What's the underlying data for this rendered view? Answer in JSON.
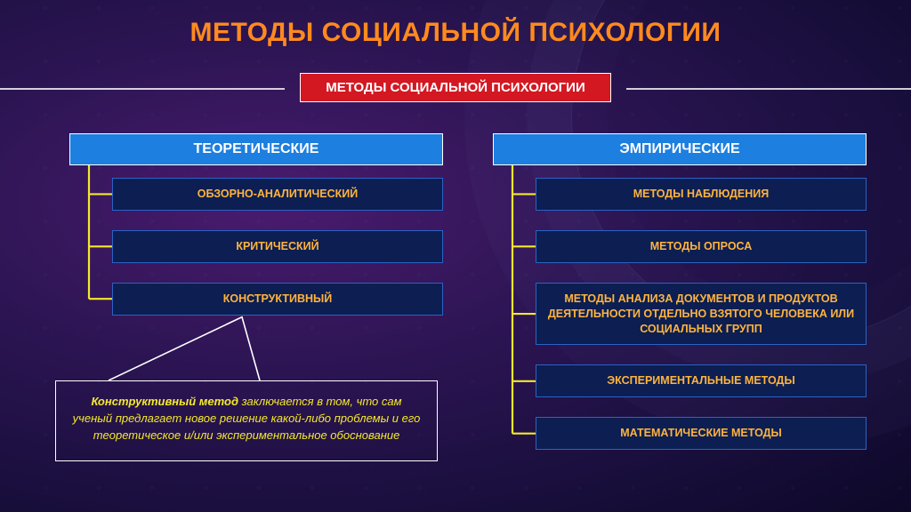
{
  "colors": {
    "title": "#ff8a1e",
    "subtitle_bg": "#d31822",
    "header_bg": "#1d7fe0",
    "item_bg": "#0c1e52",
    "item_text": "#ffb43d",
    "item_border": "#2a63c4",
    "connector": "#f4e92b",
    "callout_text": "#f4e92b",
    "white": "#ffffff"
  },
  "layout": {
    "left_items_spacing": 62,
    "right_items_spacing": 60,
    "item_indent": 48
  },
  "title": "МЕТОДЫ СОЦИАЛЬНОЙ ПСИХОЛОГИИ",
  "subtitle": "МЕТОДЫ СОЦИАЛЬНОЙ ПСИХОЛОГИИ",
  "columns": {
    "left": {
      "header": "ТЕОРЕТИЧЕСКИЕ",
      "items": [
        "ОБЗОРНО-АНАЛИТИЧЕСКИЙ",
        "КРИТИЧЕСКИЙ",
        "КОНСТРУКТИВНЫЙ"
      ]
    },
    "right": {
      "header": "ЭМПИРИЧЕСКИЕ",
      "items": [
        "МЕТОДЫ НАБЛЮДЕНИЯ",
        "МЕТОДЫ ОПРОСА",
        "МЕТОДЫ АНАЛИЗА ДОКУМЕНТОВ И ПРОДУКТОВ ДЕЯТЕЛЬНОСТИ ОТДЕЛЬНО ВЗЯТОГО ЧЕЛОВЕКА ИЛИ СОЦИАЛЬНЫХ ГРУПП",
        "ЭКСПЕРИМЕНТАЛЬНЫЕ МЕТОДЫ",
        "МАТЕМАТИЧЕСКИЕ МЕТОДЫ"
      ]
    }
  },
  "callout": {
    "bold": "Конструктивный метод",
    "rest": " заключается в том, что сам ученый предлагает новое решение какой-либо проблемы и его теоретическое и/или экспериментальное обоснование"
  }
}
